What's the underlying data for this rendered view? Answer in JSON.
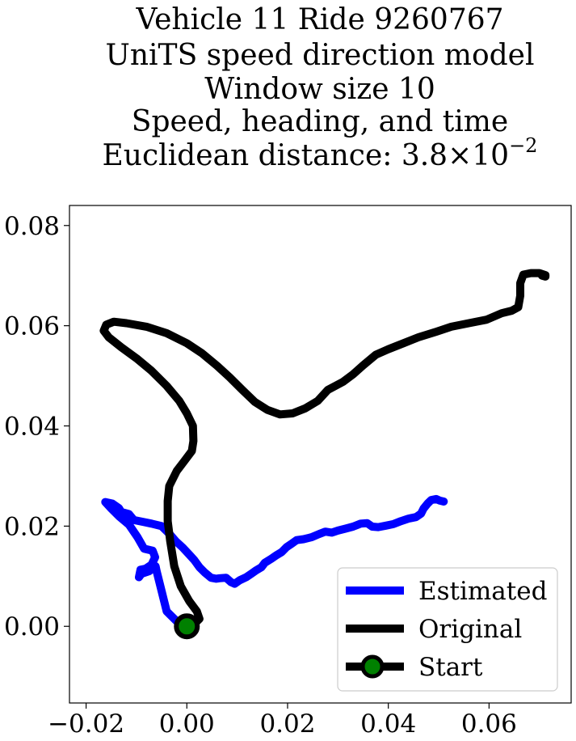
{
  "chart_data": {
    "type": "line",
    "title_lines": [
      "Vehicle 11 Ride 9260767",
      "UniTS speed direction model",
      "Window size 10",
      "Speed, heading, and time"
    ],
    "title_distance_prefix": "Euclidean distance: 3.8",
    "title_distance_times": "×",
    "title_distance_base": "10",
    "title_distance_exp": "−2",
    "xlim": [
      -0.0233,
      0.0763
    ],
    "ylim": [
      -0.0153,
      0.084
    ],
    "x_ticks": [
      -0.02,
      0.0,
      0.02,
      0.04,
      0.06
    ],
    "x_tick_labels": [
      "−0.02",
      "0.00",
      "0.02",
      "0.04",
      "0.06"
    ],
    "y_ticks": [
      0.0,
      0.02,
      0.04,
      0.06,
      0.08
    ],
    "y_tick_labels": [
      "0.00",
      "0.02",
      "0.04",
      "0.06",
      "0.08"
    ],
    "legend_position": "lower-right",
    "series": [
      {
        "name": "Estimated",
        "color": "#0000ff",
        "points": [
          [
            0.0,
            0.0
          ],
          [
            -0.002,
            0.001
          ],
          [
            -0.003,
            0.002
          ],
          [
            -0.004,
            0.003
          ],
          [
            -0.0045,
            0.005
          ],
          [
            -0.005,
            0.007
          ],
          [
            -0.0055,
            0.009
          ],
          [
            -0.006,
            0.011
          ],
          [
            -0.0062,
            0.012
          ],
          [
            -0.0075,
            0.011
          ],
          [
            -0.009,
            0.0105
          ],
          [
            -0.0095,
            0.0098
          ],
          [
            -0.0092,
            0.0113
          ],
          [
            -0.0082,
            0.0115
          ],
          [
            -0.007,
            0.0123
          ],
          [
            -0.0063,
            0.0138
          ],
          [
            -0.0068,
            0.0151
          ],
          [
            -0.0085,
            0.0155
          ],
          [
            -0.0098,
            0.0178
          ],
          [
            -0.0115,
            0.0203
          ],
          [
            -0.0135,
            0.022
          ],
          [
            -0.015,
            0.0235
          ],
          [
            -0.0162,
            0.0248
          ],
          [
            -0.0148,
            0.0245
          ],
          [
            -0.0135,
            0.0236
          ],
          [
            -0.013,
            0.0228
          ],
          [
            -0.0115,
            0.0224
          ],
          [
            -0.0105,
            0.0212
          ],
          [
            -0.0085,
            0.0208
          ],
          [
            -0.007,
            0.0205
          ],
          [
            -0.005,
            0.02
          ],
          [
            -0.0035,
            0.0185
          ],
          [
            -0.0022,
            0.017
          ],
          [
            -0.0008,
            0.0157
          ],
          [
            0.0005,
            0.0143
          ],
          [
            0.0015,
            0.0132
          ],
          [
            0.0025,
            0.0118
          ],
          [
            0.0035,
            0.0108
          ],
          [
            0.0048,
            0.0097
          ],
          [
            0.0058,
            0.0095
          ],
          [
            0.0065,
            0.0096
          ],
          [
            0.0078,
            0.0097
          ],
          [
            0.0088,
            0.0088
          ],
          [
            0.0095,
            0.0085
          ],
          [
            0.0105,
            0.0092
          ],
          [
            0.0118,
            0.0098
          ],
          [
            0.0128,
            0.0105
          ],
          [
            0.0138,
            0.0112
          ],
          [
            0.0148,
            0.0118
          ],
          [
            0.0155,
            0.0127
          ],
          [
            0.0168,
            0.0135
          ],
          [
            0.0178,
            0.0142
          ],
          [
            0.0188,
            0.0148
          ],
          [
            0.0198,
            0.0158
          ],
          [
            0.0208,
            0.0165
          ],
          [
            0.0218,
            0.0172
          ],
          [
            0.0232,
            0.0174
          ],
          [
            0.0248,
            0.0178
          ],
          [
            0.0262,
            0.0184
          ],
          [
            0.0275,
            0.0189
          ],
          [
            0.0288,
            0.0187
          ],
          [
            0.03,
            0.0191
          ],
          [
            0.0315,
            0.0195
          ],
          [
            0.033,
            0.0199
          ],
          [
            0.0345,
            0.0205
          ],
          [
            0.0358,
            0.0206
          ],
          [
            0.0368,
            0.0199
          ],
          [
            0.038,
            0.0198
          ],
          [
            0.0395,
            0.0201
          ],
          [
            0.041,
            0.0204
          ],
          [
            0.0425,
            0.021
          ],
          [
            0.044,
            0.0215
          ],
          [
            0.0455,
            0.0218
          ],
          [
            0.0465,
            0.0225
          ],
          [
            0.047,
            0.0235
          ],
          [
            0.0478,
            0.0245
          ],
          [
            0.0485,
            0.0252
          ],
          [
            0.0495,
            0.0254
          ],
          [
            0.0502,
            0.0251
          ],
          [
            0.051,
            0.0249
          ]
        ]
      },
      {
        "name": "Original",
        "color": "#000000",
        "points": [
          [
            0.0,
            0.0
          ],
          [
            0.0015,
            0.0005
          ],
          [
            0.0025,
            0.0015
          ],
          [
            0.002,
            0.003
          ],
          [
            0.0005,
            0.005
          ],
          [
            -0.0012,
            0.008
          ],
          [
            -0.0025,
            0.012
          ],
          [
            -0.0033,
            0.017
          ],
          [
            -0.0038,
            0.021
          ],
          [
            -0.0038,
            0.025
          ],
          [
            -0.0035,
            0.028
          ],
          [
            -0.002,
            0.031
          ],
          [
            -0.0005,
            0.033
          ],
          [
            0.001,
            0.035
          ],
          [
            0.0013,
            0.037
          ],
          [
            0.0012,
            0.04
          ],
          [
            0.0,
            0.0425
          ],
          [
            -0.0015,
            0.045
          ],
          [
            -0.004,
            0.048
          ],
          [
            -0.007,
            0.051
          ],
          [
            -0.01,
            0.0535
          ],
          [
            -0.013,
            0.0557
          ],
          [
            -0.0155,
            0.0577
          ],
          [
            -0.0165,
            0.059
          ],
          [
            -0.016,
            0.0602
          ],
          [
            -0.0145,
            0.0608
          ],
          [
            -0.012,
            0.0605
          ],
          [
            -0.008,
            0.0598
          ],
          [
            -0.004,
            0.0585
          ],
          [
            0.0,
            0.0565
          ],
          [
            0.003,
            0.0545
          ],
          [
            0.006,
            0.052
          ],
          [
            0.0085,
            0.0497
          ],
          [
            0.011,
            0.0472
          ],
          [
            0.0135,
            0.0448
          ],
          [
            0.016,
            0.0432
          ],
          [
            0.0185,
            0.0423
          ],
          [
            0.021,
            0.0425
          ],
          [
            0.0235,
            0.0435
          ],
          [
            0.026,
            0.045
          ],
          [
            0.028,
            0.0472
          ],
          [
            0.031,
            0.0488
          ],
          [
            0.033,
            0.0503
          ],
          [
            0.035,
            0.0521
          ],
          [
            0.0375,
            0.0542
          ],
          [
            0.04,
            0.0553
          ],
          [
            0.043,
            0.0565
          ],
          [
            0.046,
            0.0577
          ],
          [
            0.0495,
            0.0588
          ],
          [
            0.0525,
            0.0598
          ],
          [
            0.056,
            0.0605
          ],
          [
            0.0595,
            0.0612
          ],
          [
            0.0625,
            0.0625
          ],
          [
            0.0645,
            0.063
          ],
          [
            0.0658,
            0.0637
          ],
          [
            0.0662,
            0.066
          ],
          [
            0.0662,
            0.0685
          ],
          [
            0.0668,
            0.0702
          ],
          [
            0.0683,
            0.0705
          ],
          [
            0.07,
            0.0705
          ],
          [
            0.0712,
            0.0701
          ],
          [
            0.0712,
            0.0698
          ],
          [
            0.0705,
            0.07
          ]
        ]
      }
    ],
    "start_point": {
      "name": "Start",
      "x": 0.0,
      "y": 0.0,
      "marker_color": "#008000",
      "edge_color": "#000000"
    }
  }
}
